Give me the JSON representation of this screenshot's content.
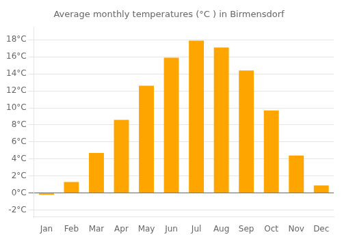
{
  "chart_data": {
    "type": "bar",
    "title": "Average monthly temperatures (°C ) in Birmensdorf",
    "categories": [
      "Jan",
      "Feb",
      "Mar",
      "Apr",
      "May",
      "Jun",
      "Jul",
      "Aug",
      "Sep",
      "Oct",
      "Nov",
      "Dec"
    ],
    "values": [
      -0.2,
      1.3,
      4.7,
      8.6,
      12.6,
      15.9,
      17.9,
      17.1,
      14.4,
      9.7,
      4.4,
      0.9
    ],
    "color": "#FFA500",
    "ylim": [
      -2.8,
      19.5
    ],
    "yticks": [
      {
        "value": -2,
        "label": "-2°C"
      },
      {
        "value": 0,
        "label": "0°C"
      },
      {
        "value": 2,
        "label": "2°C"
      },
      {
        "value": 4,
        "label": "4°C"
      },
      {
        "value": 6,
        "label": "6°C"
      },
      {
        "value": 8,
        "label": "8°C"
      },
      {
        "value": 10,
        "label": "10°C"
      },
      {
        "value": 12,
        "label": "12°C"
      },
      {
        "value": 14,
        "label": "14°C"
      },
      {
        "value": 16,
        "label": "16°C"
      },
      {
        "value": 18,
        "label": "18°C"
      }
    ],
    "grid": true
  }
}
